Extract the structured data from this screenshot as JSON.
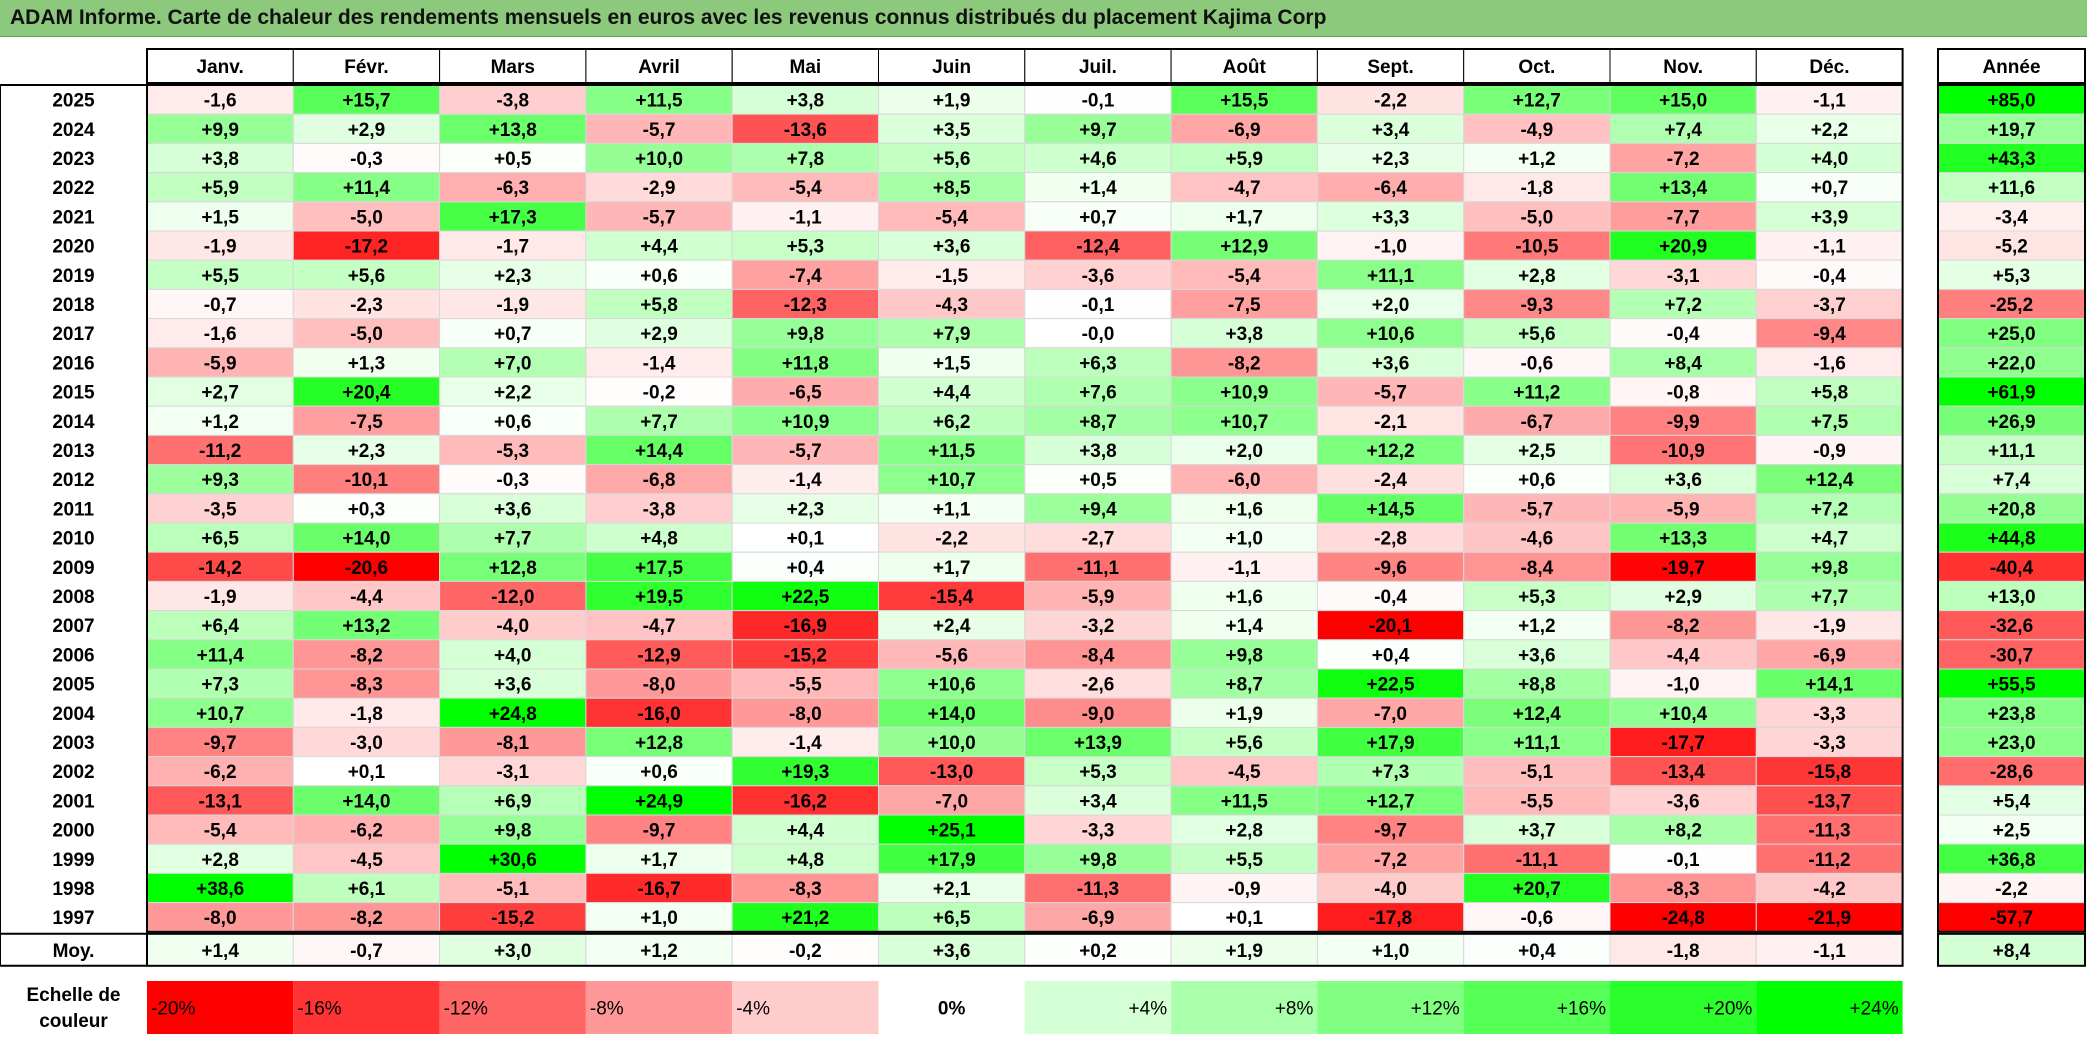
{
  "title": "ADAM Informe. Carte de chaleur des rendements mensuels en euros avec les revenus connus distribués du placement Kajima Corp",
  "months": [
    "Janv.",
    "Févr.",
    "Mars",
    "Avril",
    "Mai",
    "Juin",
    "Juil.",
    "Août",
    "Sept.",
    "Oct.",
    "Nov.",
    "Déc."
  ],
  "year_header": "Année",
  "avg_label": "Moy.",
  "scale_label": "Echelle de couleur",
  "colors": {
    "max_negative": "#ff0000",
    "neutral": "#ffffff",
    "max_positive": "#00ff00",
    "title_bg": "#8dc97d"
  },
  "chart_data": {
    "type": "heatmap",
    "title": "ADAM Informe. Carte de chaleur des rendements mensuels en euros avec les revenus connus distribués du placement Kajima Corp",
    "x_categories": [
      "Janv.",
      "Févr.",
      "Mars",
      "Avril",
      "Mai",
      "Juin",
      "Juil.",
      "Août",
      "Sept.",
      "Oct.",
      "Nov.",
      "Déc."
    ],
    "rows": [
      {
        "year": "2025",
        "values": [
          "-1,6",
          "+15,7",
          "-3,8",
          "+11,5",
          "+3,8",
          "+1,9",
          "-0,1",
          "+15,5",
          "-2,2",
          "+12,7",
          "+15,0",
          "-1,1"
        ],
        "annual": "+85,0"
      },
      {
        "year": "2024",
        "values": [
          "+9,9",
          "+2,9",
          "+13,8",
          "-5,7",
          "-13,6",
          "+3,5",
          "+9,7",
          "-6,9",
          "+3,4",
          "-4,9",
          "+7,4",
          "+2,2"
        ],
        "annual": "+19,7"
      },
      {
        "year": "2023",
        "values": [
          "+3,8",
          "-0,3",
          "+0,5",
          "+10,0",
          "+7,8",
          "+5,6",
          "+4,6",
          "+5,9",
          "+2,3",
          "+1,2",
          "-7,2",
          "+4,0"
        ],
        "annual": "+43,3"
      },
      {
        "year": "2022",
        "values": [
          "+5,9",
          "+11,4",
          "-6,3",
          "-2,9",
          "-5,4",
          "+8,5",
          "+1,4",
          "-4,7",
          "-6,4",
          "-1,8",
          "+13,4",
          "+0,7"
        ],
        "annual": "+11,6"
      },
      {
        "year": "2021",
        "values": [
          "+1,5",
          "-5,0",
          "+17,3",
          "-5,7",
          "-1,1",
          "-5,4",
          "+0,7",
          "+1,7",
          "+3,3",
          "-5,0",
          "-7,7",
          "+3,9"
        ],
        "annual": "-3,4"
      },
      {
        "year": "2020",
        "values": [
          "-1,9",
          "-17,2",
          "-1,7",
          "+4,4",
          "+5,3",
          "+3,6",
          "-12,4",
          "+12,9",
          "-1,0",
          "-10,5",
          "+20,9",
          "-1,1"
        ],
        "annual": "-5,2"
      },
      {
        "year": "2019",
        "values": [
          "+5,5",
          "+5,6",
          "+2,3",
          "+0,6",
          "-7,4",
          "-1,5",
          "-3,6",
          "-5,4",
          "+11,1",
          "+2,8",
          "-3,1",
          "-0,4"
        ],
        "annual": "+5,3"
      },
      {
        "year": "2018",
        "values": [
          "-0,7",
          "-2,3",
          "-1,9",
          "+5,8",
          "-12,3",
          "-4,3",
          "-0,1",
          "-7,5",
          "+2,0",
          "-9,3",
          "+7,2",
          "-3,7"
        ],
        "annual": "-25,2"
      },
      {
        "year": "2017",
        "values": [
          "-1,6",
          "-5,0",
          "+0,7",
          "+2,9",
          "+9,8",
          "+7,9",
          "-0,0",
          "+3,8",
          "+10,6",
          "+5,6",
          "-0,4",
          "-9,4"
        ],
        "annual": "+25,0"
      },
      {
        "year": "2016",
        "values": [
          "-5,9",
          "+1,3",
          "+7,0",
          "-1,4",
          "+11,8",
          "+1,5",
          "+6,3",
          "-8,2",
          "+3,6",
          "-0,6",
          "+8,4",
          "-1,6"
        ],
        "annual": "+22,0"
      },
      {
        "year": "2015",
        "values": [
          "+2,7",
          "+20,4",
          "+2,2",
          "-0,2",
          "-6,5",
          "+4,4",
          "+7,6",
          "+10,9",
          "-5,7",
          "+11,2",
          "-0,8",
          "+5,8"
        ],
        "annual": "+61,9"
      },
      {
        "year": "2014",
        "values": [
          "+1,2",
          "-7,5",
          "+0,6",
          "+7,7",
          "+10,9",
          "+6,2",
          "+8,7",
          "+10,7",
          "-2,1",
          "-6,7",
          "-9,9",
          "+7,5"
        ],
        "annual": "+26,9"
      },
      {
        "year": "2013",
        "values": [
          "-11,2",
          "+2,3",
          "-5,3",
          "+14,4",
          "-5,7",
          "+11,5",
          "+3,8",
          "+2,0",
          "+12,2",
          "+2,5",
          "-10,9",
          "-0,9"
        ],
        "annual": "+11,1"
      },
      {
        "year": "2012",
        "values": [
          "+9,3",
          "-10,1",
          "-0,3",
          "-6,8",
          "-1,4",
          "+10,7",
          "+0,5",
          "-6,0",
          "-2,4",
          "+0,6",
          "+3,6",
          "+12,4"
        ],
        "annual": "+7,4"
      },
      {
        "year": "2011",
        "values": [
          "-3,5",
          "+0,3",
          "+3,6",
          "-3,8",
          "+2,3",
          "+1,1",
          "+9,4",
          "+1,6",
          "+14,5",
          "-5,7",
          "-5,9",
          "+7,2"
        ],
        "annual": "+20,8"
      },
      {
        "year": "2010",
        "values": [
          "+6,5",
          "+14,0",
          "+7,7",
          "+4,8",
          "+0,1",
          "-2,2",
          "-2,7",
          "+1,0",
          "-2,8",
          "-4,6",
          "+13,3",
          "+4,7"
        ],
        "annual": "+44,8"
      },
      {
        "year": "2009",
        "values": [
          "-14,2",
          "-20,6",
          "+12,8",
          "+17,5",
          "+0,4",
          "+1,7",
          "-11,1",
          "-1,1",
          "-9,6",
          "-8,4",
          "-19,7",
          "+9,8"
        ],
        "annual": "-40,4"
      },
      {
        "year": "2008",
        "values": [
          "-1,9",
          "-4,4",
          "-12,0",
          "+19,5",
          "+22,5",
          "-15,4",
          "-5,9",
          "+1,6",
          "-0,4",
          "+5,3",
          "+2,9",
          "+7,7"
        ],
        "annual": "+13,0"
      },
      {
        "year": "2007",
        "values": [
          "+6,4",
          "+13,2",
          "-4,0",
          "-4,7",
          "-16,9",
          "+2,4",
          "-3,2",
          "+1,4",
          "-20,1",
          "+1,2",
          "-8,2",
          "-1,9"
        ],
        "annual": "-32,6"
      },
      {
        "year": "2006",
        "values": [
          "+11,4",
          "-8,2",
          "+4,0",
          "-12,9",
          "-15,2",
          "-5,6",
          "-8,4",
          "+9,8",
          "+0,4",
          "+3,6",
          "-4,4",
          "-6,9"
        ],
        "annual": "-30,7"
      },
      {
        "year": "2005",
        "values": [
          "+7,3",
          "-8,3",
          "+3,6",
          "-8,0",
          "-5,5",
          "+10,6",
          "-2,6",
          "+8,7",
          "+22,5",
          "+8,8",
          "-1,0",
          "+14,1"
        ],
        "annual": "+55,5"
      },
      {
        "year": "2004",
        "values": [
          "+10,7",
          "-1,8",
          "+24,8",
          "-16,0",
          "-8,0",
          "+14,0",
          "-9,0",
          "+1,9",
          "-7,0",
          "+12,4",
          "+10,4",
          "-3,3"
        ],
        "annual": "+23,8"
      },
      {
        "year": "2003",
        "values": [
          "-9,7",
          "-3,0",
          "-8,1",
          "+12,8",
          "-1,4",
          "+10,0",
          "+13,9",
          "+5,6",
          "+17,9",
          "+11,1",
          "-17,7",
          "-3,3"
        ],
        "annual": "+23,0"
      },
      {
        "year": "2002",
        "values": [
          "-6,2",
          "+0,1",
          "-3,1",
          "+0,6",
          "+19,3",
          "-13,0",
          "+5,3",
          "-4,5",
          "+7,3",
          "-5,1",
          "-13,4",
          "-15,8"
        ],
        "annual": "-28,6"
      },
      {
        "year": "2001",
        "values": [
          "-13,1",
          "+14,0",
          "+6,9",
          "+24,9",
          "-16,2",
          "-7,0",
          "+3,4",
          "+11,5",
          "+12,7",
          "-5,5",
          "-3,6",
          "-13,7"
        ],
        "annual": "+5,4"
      },
      {
        "year": "2000",
        "values": [
          "-5,4",
          "-6,2",
          "+9,8",
          "-9,7",
          "+4,4",
          "+25,1",
          "-3,3",
          "+2,8",
          "-9,7",
          "+3,7",
          "+8,2",
          "-11,3"
        ],
        "annual": "+2,5"
      },
      {
        "year": "1999",
        "values": [
          "+2,8",
          "-4,5",
          "+30,6",
          "+1,7",
          "+4,8",
          "+17,9",
          "+9,8",
          "+5,5",
          "-7,2",
          "-11,1",
          "-0,1",
          "-11,2"
        ],
        "annual": "+36,8"
      },
      {
        "year": "1998",
        "values": [
          "+38,6",
          "+6,1",
          "-5,1",
          "-16,7",
          "-8,3",
          "+2,1",
          "-11,3",
          "-0,9",
          "-4,0",
          "+20,7",
          "-8,3",
          "-4,2"
        ],
        "annual": "-2,2"
      },
      {
        "year": "1997",
        "values": [
          "-8,0",
          "-8,2",
          "-15,2",
          "+1,0",
          "+21,2",
          "+6,5",
          "-6,9",
          "+0,1",
          "-17,8",
          "-0,6",
          "-24,8",
          "-21,9"
        ],
        "annual": "-57,7"
      }
    ],
    "average": {
      "values": [
        "+1,4",
        "-0,7",
        "+3,0",
        "+1,2",
        "-0,2",
        "+3,6",
        "+0,2",
        "+1,9",
        "+1,0",
        "+0,4",
        "-1,8",
        "-1,1"
      ],
      "annual": "+8,4"
    },
    "scale": [
      "-20%",
      "-16%",
      "-12%",
      "-8%",
      "-4%",
      "0%",
      "+4%",
      "+8%",
      "+12%",
      "+16%",
      "+20%",
      "+24%"
    ],
    "scale_values": [
      -20,
      -16,
      -12,
      -8,
      -4,
      0,
      4,
      8,
      12,
      16,
      20,
      24
    ],
    "monthly_color_range": [
      -20,
      24
    ],
    "annual_color_range": [
      -50,
      50
    ]
  }
}
